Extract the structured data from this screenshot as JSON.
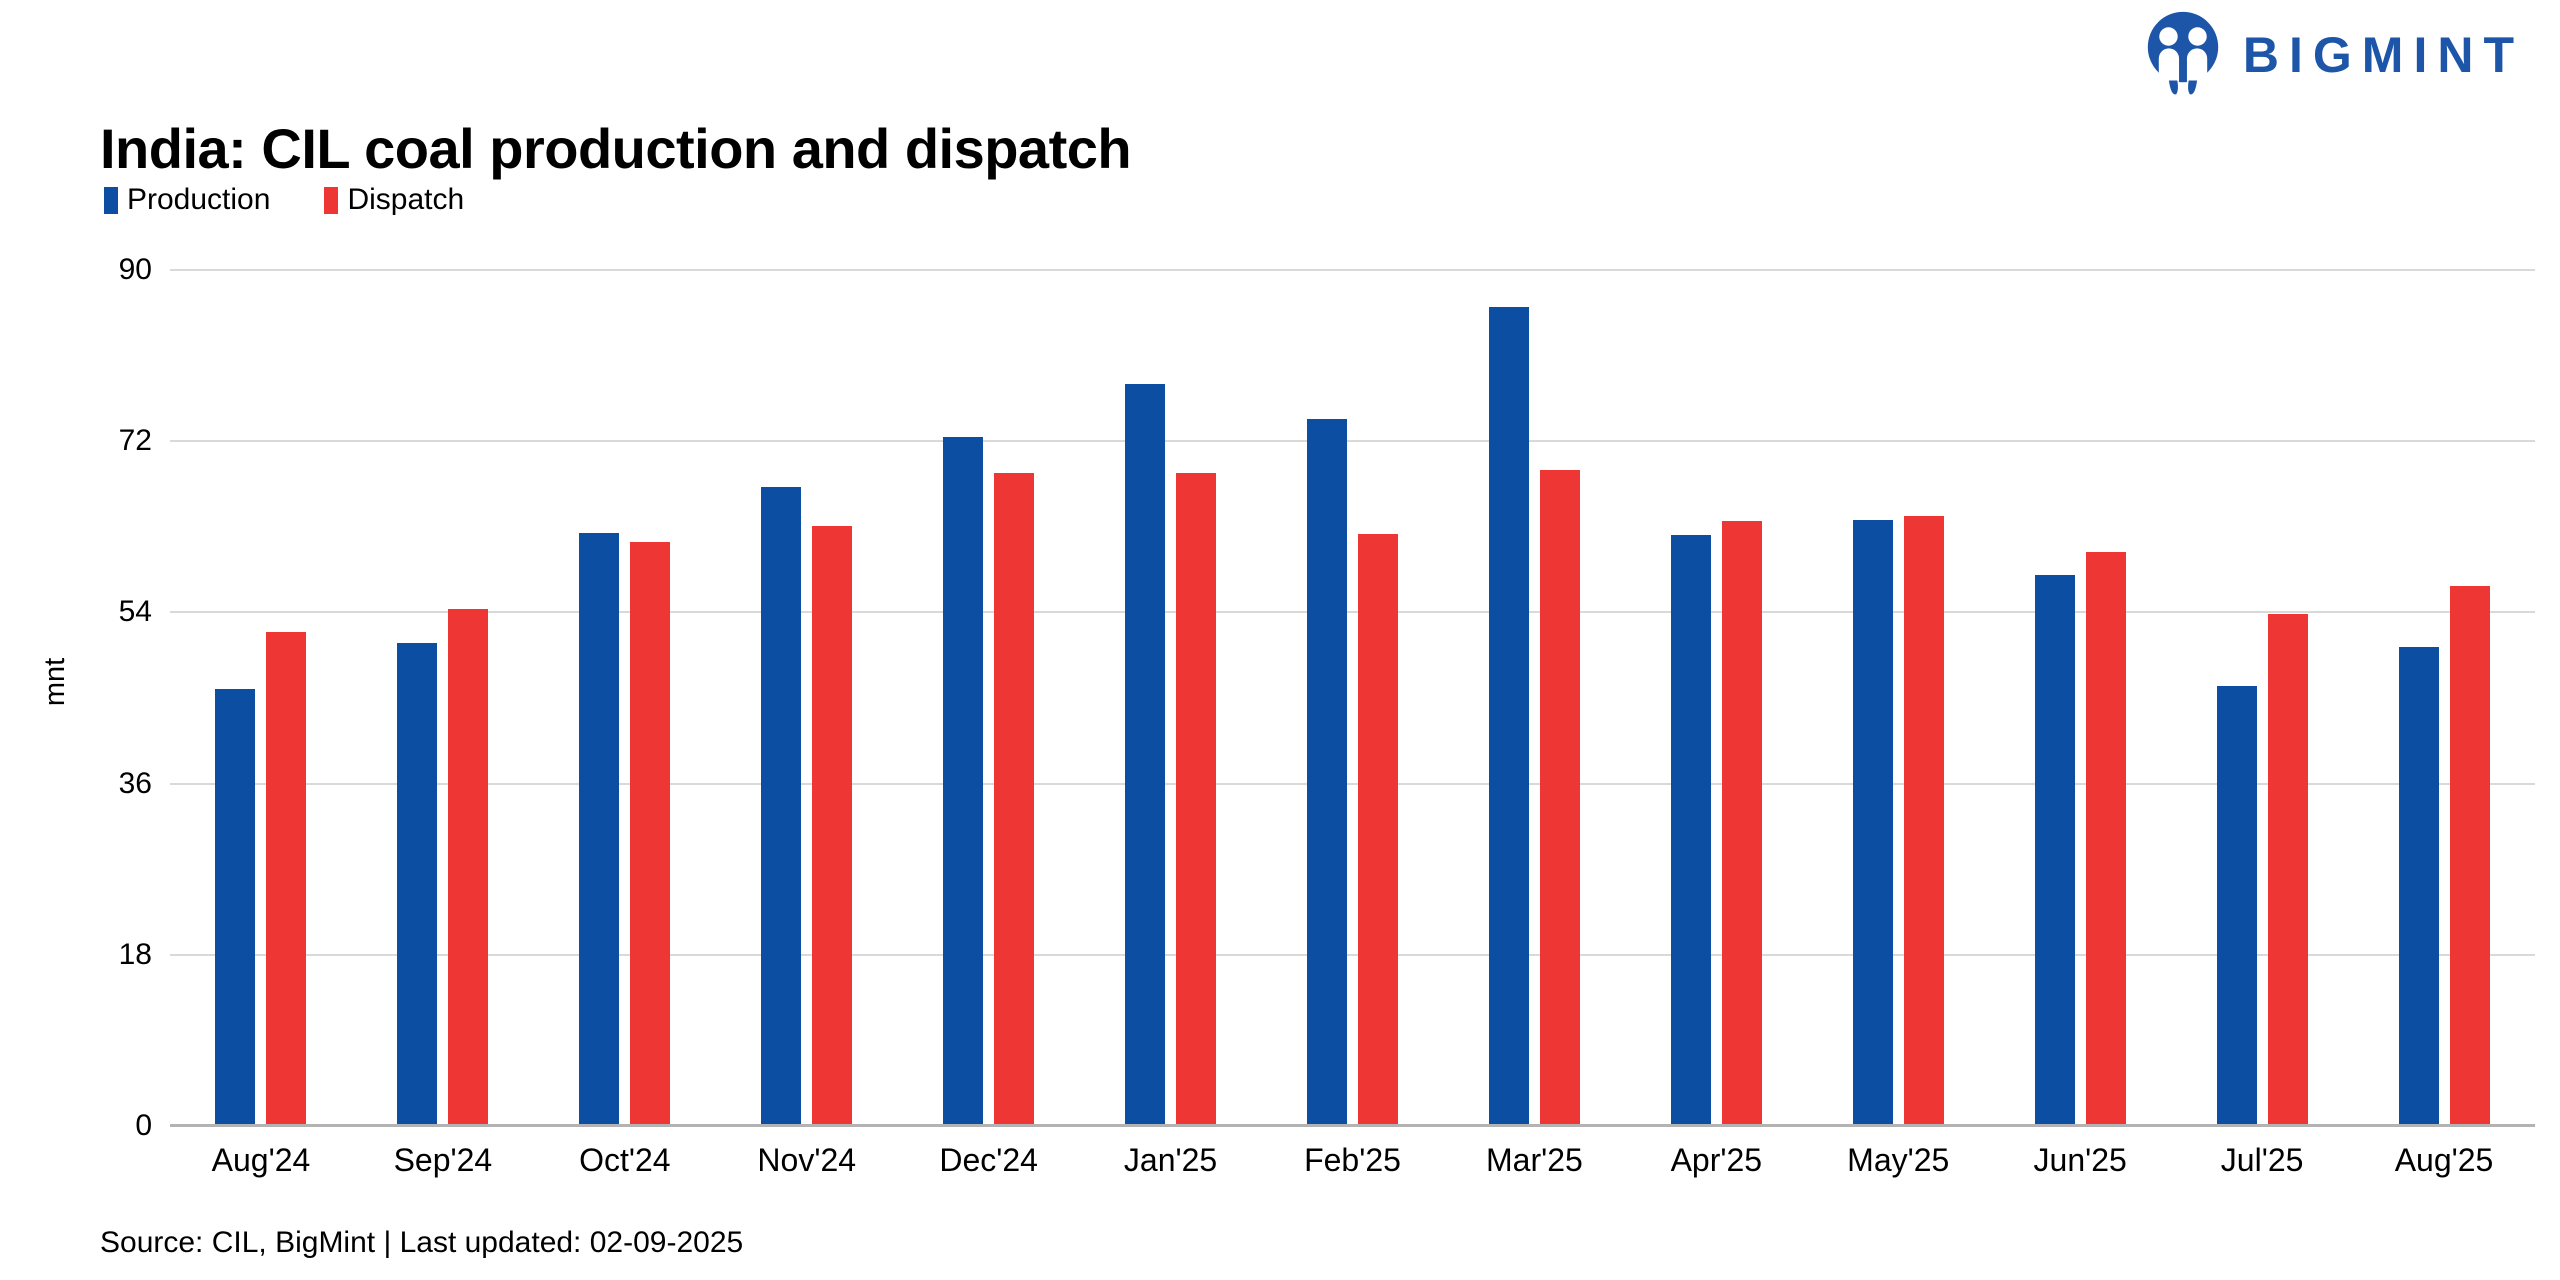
{
  "header": {
    "title": "India: CIL coal production and dispatch",
    "brand": {
      "name": "BIGMINT",
      "logo_color": "#1d56a8"
    }
  },
  "legend": [
    {
      "label": "Production",
      "color": "#0b4ea2"
    },
    {
      "label": "Dispatch",
      "color": "#ee3734"
    }
  ],
  "chart_data": {
    "type": "bar",
    "title": "India: CIL coal production and dispatch",
    "xlabel": "",
    "ylabel": "mnt",
    "ylim": [
      0,
      90
    ],
    "yticks": [
      0,
      18,
      36,
      54,
      72,
      90
    ],
    "grid": "horizontal",
    "legend_position": "top-left",
    "categories": [
      "Aug'24",
      "Sep'24",
      "Oct'24",
      "Nov'24",
      "Dec'24",
      "Jan'25",
      "Feb'25",
      "Mar'25",
      "Apr'25",
      "May'25",
      "Jun'25",
      "Jul'25",
      "Aug'25"
    ],
    "series": [
      {
        "name": "Production",
        "color": "#0b4ea2",
        "values": [
          46.0,
          50.8,
          62.4,
          67.2,
          72.4,
          78.0,
          74.3,
          86.1,
          62.1,
          63.7,
          57.9,
          46.3,
          50.4
        ]
      },
      {
        "name": "Dispatch",
        "color": "#ee3734",
        "values": [
          51.9,
          54.4,
          61.4,
          63.1,
          68.7,
          68.7,
          62.2,
          69.0,
          63.6,
          64.1,
          60.4,
          53.8,
          56.8
        ]
      }
    ]
  },
  "footer": {
    "source": "Source: CIL, BigMint | Last updated: 02-09-2025"
  }
}
